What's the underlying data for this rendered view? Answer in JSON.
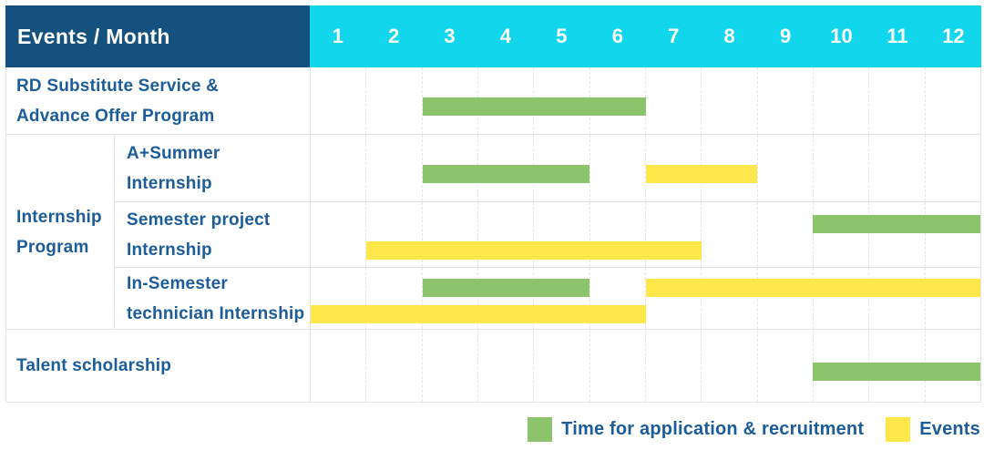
{
  "header": {
    "title": "Events / Month",
    "months": [
      "1",
      "2",
      "3",
      "4",
      "5",
      "6",
      "7",
      "8",
      "9",
      "10",
      "11",
      "12"
    ]
  },
  "colors": {
    "header_bg": "#15517F",
    "months_bg": "#12D7EC",
    "bar_green": "#8BC46B",
    "bar_yellow": "#FDE74A",
    "label_text": "#1B5C99",
    "grid_line": "#E6E6E6",
    "row_border": "#E3E3E3"
  },
  "legend": {
    "items": [
      {
        "key": "green",
        "label": "Time for application & recruitment"
      },
      {
        "key": "yellow",
        "label": "Events"
      }
    ]
  },
  "chart_data": {
    "type": "gantt",
    "x_categories": [
      "1",
      "2",
      "3",
      "4",
      "5",
      "6",
      "7",
      "8",
      "9",
      "10",
      "11",
      "12"
    ],
    "x_axis_label": "Events / Month",
    "legend": [
      {
        "label": "Time for application & recruitment",
        "color": "#8BC46B"
      },
      {
        "label": "Events",
        "color": "#FDE74A"
      }
    ],
    "group_label": "Internship Program",
    "group_label_lines": [
      "Internship",
      "Program"
    ],
    "tasks": [
      {
        "group": "",
        "label": "RD Substitute Service & Advance Offer Program",
        "label_lines": [
          "RD Substitute Service &",
          "Advance Offer Program"
        ],
        "lines": 1,
        "bars": [
          {
            "series": "Time for application & recruitment",
            "color_key": "green",
            "start_month": 3,
            "end_month": 6,
            "line": 0
          }
        ]
      },
      {
        "group": "Internship Program",
        "label": "A+Summer Internship",
        "label_lines": [
          "A+Summer",
          "Internship"
        ],
        "lines": 1,
        "bars": [
          {
            "series": "Time for application & recruitment",
            "color_key": "green",
            "start_month": 3,
            "end_month": 5,
            "line": 0
          },
          {
            "series": "Events",
            "color_key": "yellow",
            "start_month": 7,
            "end_month": 8,
            "line": 0
          }
        ]
      },
      {
        "group": "Internship Program",
        "label": "Semester project Internship",
        "label_lines": [
          "Semester project",
          "Internship"
        ],
        "lines": 2,
        "bars": [
          {
            "series": "Time for application & recruitment",
            "color_key": "green",
            "start_month": 10,
            "end_month": 12,
            "line": 0
          },
          {
            "series": "Events",
            "color_key": "yellow",
            "start_month": 2,
            "end_month": 7,
            "line": 1
          }
        ]
      },
      {
        "group": "Internship Program",
        "label": "In-Semester technician Internship",
        "label_lines": [
          "In-Semester",
          "technician Internship"
        ],
        "lines": 2,
        "bars": [
          {
            "series": "Time for application & recruitment",
            "color_key": "green",
            "start_month": 3,
            "end_month": 5,
            "line": 0
          },
          {
            "series": "Events",
            "color_key": "yellow",
            "start_month": 7,
            "end_month": 12,
            "line": 0
          },
          {
            "series": "Events",
            "color_key": "yellow",
            "start_month": 1,
            "end_month": 6,
            "line": 1
          }
        ]
      },
      {
        "group": "",
        "label": "Talent scholarship",
        "label_lines": [
          "Talent scholarship"
        ],
        "lines": 1,
        "bars": [
          {
            "series": "Time for application & recruitment",
            "color_key": "green",
            "start_month": 10,
            "end_month": 12,
            "line": 0
          }
        ]
      }
    ]
  }
}
